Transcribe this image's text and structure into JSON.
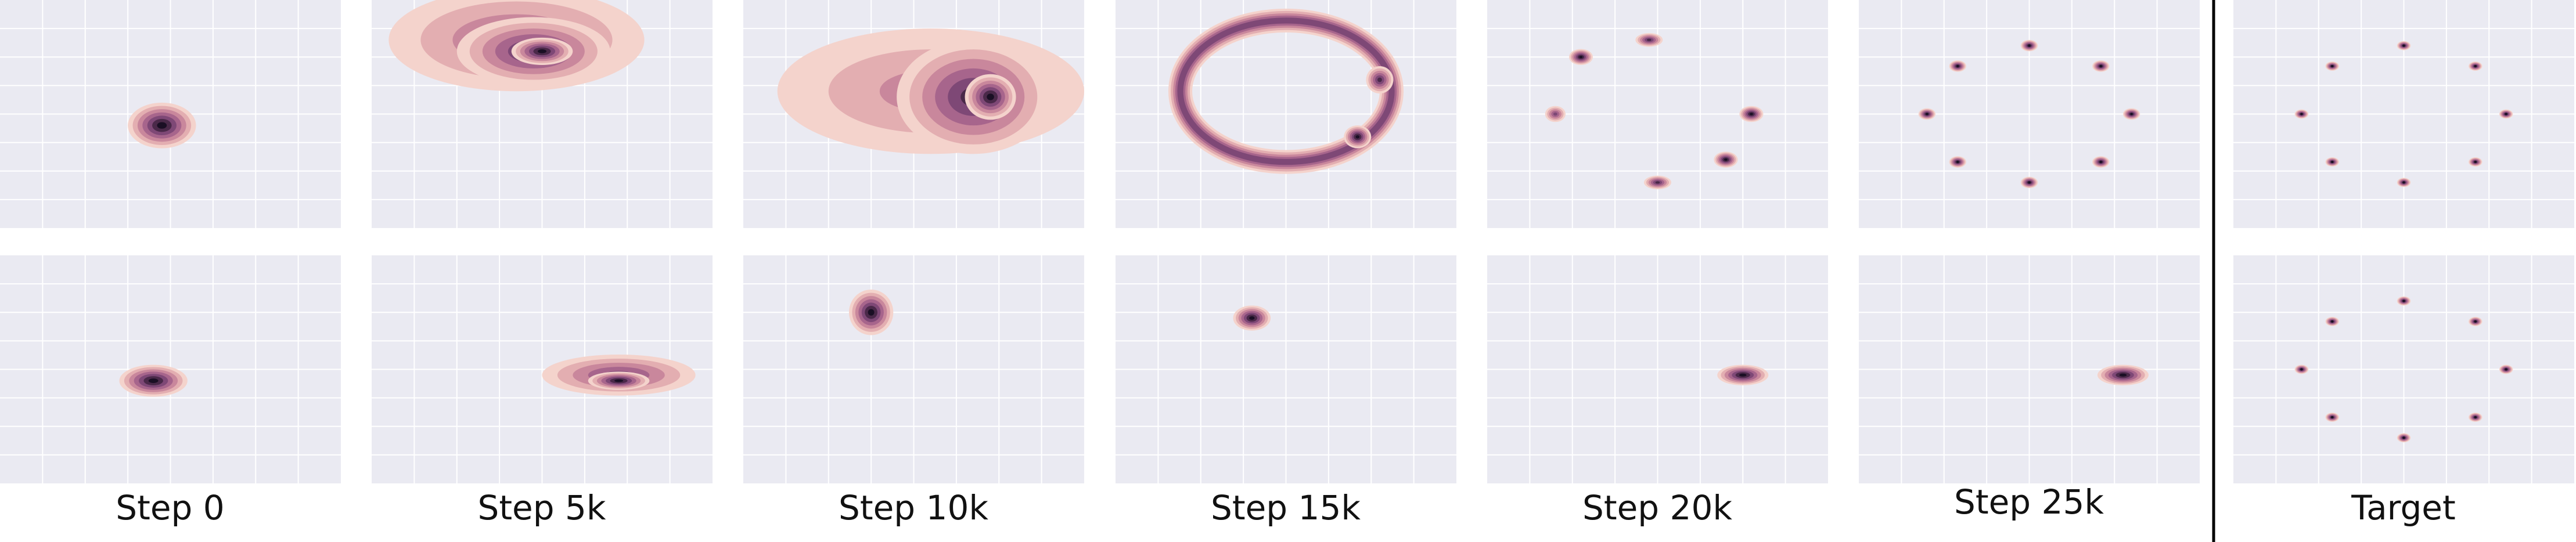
{
  "figure": {
    "columns": [
      {
        "label": "Step 0"
      },
      {
        "label": "Step 5k"
      },
      {
        "label": "Step 10k"
      },
      {
        "label": "Step 15k"
      },
      {
        "label": "Step 20k"
      },
      {
        "label": "Step 25k"
      },
      {
        "label": "Target"
      }
    ]
  },
  "chart_data": {
    "type": "heatmap",
    "description_rows": [
      "top row",
      "bottom row"
    ],
    "grid": true,
    "axis_range": {
      "x": [
        -1,
        1
      ],
      "y": [
        -1,
        1
      ]
    },
    "colors": {
      "panel_background": "#eaeaf2",
      "grid": "#ffffff",
      "density_levels": [
        "#f4d3cc",
        "#e3aeb1",
        "#c9879c",
        "#a7658c",
        "#7e4876",
        "#4a2949",
        "#1a0f24"
      ],
      "divider": "#000000"
    },
    "panels": [
      {
        "column": "Step 0",
        "row": 0,
        "blobs": [
          {
            "x": -0.05,
            "y": -0.1,
            "rx": 0.2,
            "ry": 0.2,
            "peak": 1.0
          }
        ]
      },
      {
        "column": "Step 5k",
        "row": 0,
        "blobs": [
          {
            "x": -0.15,
            "y": 0.65,
            "rx": 0.75,
            "ry": 0.45,
            "peak": 0.55
          },
          {
            "x": -0.05,
            "y": 0.55,
            "rx": 0.45,
            "ry": 0.3,
            "peak": 0.8
          },
          {
            "x": 0.0,
            "y": 0.55,
            "rx": 0.18,
            "ry": 0.12,
            "peak": 1.0
          }
        ]
      },
      {
        "column": "Step 10k",
        "row": 0,
        "blobs": [
          {
            "x": 0.1,
            "y": 0.2,
            "rx": 0.9,
            "ry": 0.55,
            "peak": 0.45
          },
          {
            "x": 0.35,
            "y": 0.15,
            "rx": 0.45,
            "ry": 0.5,
            "peak": 0.8
          },
          {
            "x": 0.45,
            "y": 0.15,
            "rx": 0.15,
            "ry": 0.2,
            "peak": 1.0
          }
        ]
      },
      {
        "column": "Step 15k",
        "row": 0,
        "ring": {
          "x": 0.0,
          "y": 0.2,
          "r": 0.62,
          "width": 0.14
        },
        "blobs": [
          {
            "x": 0.42,
            "y": -0.2,
            "rx": 0.08,
            "ry": 0.1,
            "peak": 1.0
          },
          {
            "x": 0.55,
            "y": 0.3,
            "rx": 0.08,
            "ry": 0.12,
            "peak": 0.9
          }
        ]
      },
      {
        "column": "Step 20k",
        "row": 0,
        "blobs": [
          {
            "x": -0.45,
            "y": 0.5,
            "rx": 0.07,
            "ry": 0.07,
            "peak": 1.0
          },
          {
            "x": -0.05,
            "y": 0.65,
            "rx": 0.08,
            "ry": 0.06,
            "peak": 0.9
          },
          {
            "x": 0.55,
            "y": 0.0,
            "rx": 0.07,
            "ry": 0.07,
            "peak": 1.0
          },
          {
            "x": 0.4,
            "y": -0.4,
            "rx": 0.07,
            "ry": 0.07,
            "peak": 1.0
          },
          {
            "x": 0.0,
            "y": -0.6,
            "rx": 0.08,
            "ry": 0.06,
            "peak": 0.8
          },
          {
            "x": -0.6,
            "y": 0.0,
            "rx": 0.06,
            "ry": 0.07,
            "peak": 0.7
          }
        ]
      },
      {
        "column": "Step 25k",
        "row": 0,
        "blobs": [
          {
            "x": 0.0,
            "y": 0.6,
            "rx": 0.05,
            "ry": 0.05,
            "peak": 1.0
          },
          {
            "x": 0.42,
            "y": 0.42,
            "rx": 0.05,
            "ry": 0.05,
            "peak": 1.0
          },
          {
            "x": 0.6,
            "y": 0.0,
            "rx": 0.05,
            "ry": 0.05,
            "peak": 1.0
          },
          {
            "x": 0.42,
            "y": -0.42,
            "rx": 0.05,
            "ry": 0.05,
            "peak": 1.0
          },
          {
            "x": 0.0,
            "y": -0.6,
            "rx": 0.05,
            "ry": 0.05,
            "peak": 1.0
          },
          {
            "x": -0.42,
            "y": -0.42,
            "rx": 0.05,
            "ry": 0.05,
            "peak": 1.0
          },
          {
            "x": -0.6,
            "y": 0.0,
            "rx": 0.05,
            "ry": 0.05,
            "peak": 1.0
          },
          {
            "x": -0.42,
            "y": 0.42,
            "rx": 0.05,
            "ry": 0.05,
            "peak": 1.0
          }
        ]
      },
      {
        "column": "Target",
        "row": 0,
        "blobs": [
          {
            "x": 0.0,
            "y": 0.6,
            "rx": 0.04,
            "ry": 0.04,
            "peak": 1.0
          },
          {
            "x": 0.42,
            "y": 0.42,
            "rx": 0.04,
            "ry": 0.04,
            "peak": 1.0
          },
          {
            "x": 0.6,
            "y": 0.0,
            "rx": 0.04,
            "ry": 0.04,
            "peak": 1.0
          },
          {
            "x": 0.42,
            "y": -0.42,
            "rx": 0.04,
            "ry": 0.04,
            "peak": 1.0
          },
          {
            "x": 0.0,
            "y": -0.6,
            "rx": 0.04,
            "ry": 0.04,
            "peak": 1.0
          },
          {
            "x": -0.42,
            "y": -0.42,
            "rx": 0.04,
            "ry": 0.04,
            "peak": 1.0
          },
          {
            "x": -0.6,
            "y": 0.0,
            "rx": 0.04,
            "ry": 0.04,
            "peak": 1.0
          },
          {
            "x": -0.42,
            "y": 0.42,
            "rx": 0.04,
            "ry": 0.04,
            "peak": 1.0
          }
        ]
      },
      {
        "column": "Step 0",
        "row": 1,
        "blobs": [
          {
            "x": -0.1,
            "y": -0.1,
            "rx": 0.2,
            "ry": 0.14,
            "peak": 1.0
          }
        ]
      },
      {
        "column": "Step 5k",
        "row": 1,
        "blobs": [
          {
            "x": 0.45,
            "y": -0.05,
            "rx": 0.45,
            "ry": 0.18,
            "peak": 0.7
          },
          {
            "x": 0.45,
            "y": -0.1,
            "rx": 0.18,
            "ry": 0.08,
            "peak": 1.0
          }
        ]
      },
      {
        "column": "Step 10k",
        "row": 1,
        "blobs": [
          {
            "x": -0.25,
            "y": 0.5,
            "rx": 0.13,
            "ry": 0.2,
            "peak": 1.0
          }
        ]
      },
      {
        "column": "Step 15k",
        "row": 1,
        "blobs": [
          {
            "x": -0.2,
            "y": 0.45,
            "rx": 0.11,
            "ry": 0.11,
            "peak": 1.0
          }
        ]
      },
      {
        "column": "Step 20k",
        "row": 1,
        "blobs": [
          {
            "x": 0.5,
            "y": -0.05,
            "rx": 0.15,
            "ry": 0.09,
            "peak": 1.0
          }
        ]
      },
      {
        "column": "Step 25k",
        "row": 1,
        "blobs": [
          {
            "x": 0.55,
            "y": -0.05,
            "rx": 0.15,
            "ry": 0.09,
            "peak": 1.0
          }
        ]
      },
      {
        "column": "Target",
        "row": 1,
        "blobs": [
          {
            "x": 0.0,
            "y": 0.6,
            "rx": 0.04,
            "ry": 0.04,
            "peak": 1.0
          },
          {
            "x": 0.42,
            "y": 0.42,
            "rx": 0.04,
            "ry": 0.04,
            "peak": 1.0
          },
          {
            "x": 0.6,
            "y": 0.0,
            "rx": 0.04,
            "ry": 0.04,
            "peak": 1.0
          },
          {
            "x": 0.42,
            "y": -0.42,
            "rx": 0.04,
            "ry": 0.04,
            "peak": 1.0
          },
          {
            "x": 0.0,
            "y": -0.6,
            "rx": 0.04,
            "ry": 0.04,
            "peak": 1.0
          },
          {
            "x": -0.42,
            "y": -0.42,
            "rx": 0.04,
            "ry": 0.04,
            "peak": 1.0
          },
          {
            "x": -0.6,
            "y": 0.0,
            "rx": 0.04,
            "ry": 0.04,
            "peak": 1.0
          },
          {
            "x": -0.42,
            "y": 0.42,
            "rx": 0.04,
            "ry": 0.04,
            "peak": 1.0
          }
        ]
      }
    ]
  }
}
